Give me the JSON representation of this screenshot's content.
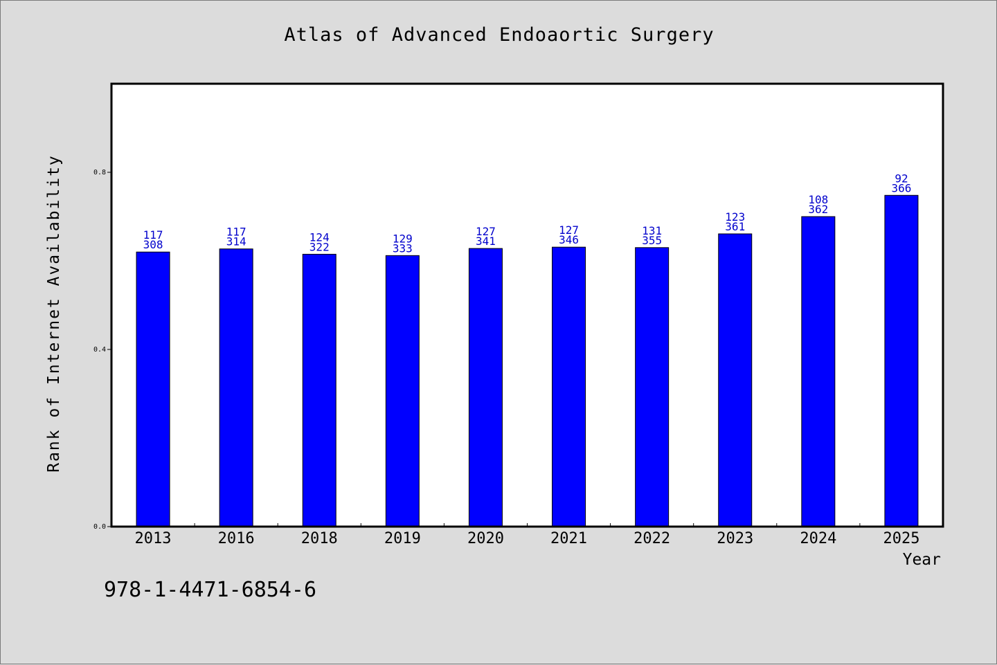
{
  "chart_data": {
    "type": "bar",
    "title": "Atlas of Advanced Endoaortic Surgery",
    "xlabel": "Year",
    "ylabel": "Rank of Internet Availability",
    "categories": [
      "2013",
      "2016",
      "2018",
      "2019",
      "2020",
      "2021",
      "2022",
      "2023",
      "2024",
      "2025"
    ],
    "values": [
      0.62,
      0.627,
      0.615,
      0.612,
      0.628,
      0.631,
      0.63,
      0.661,
      0.7,
      0.748
    ],
    "annotations": [
      {
        "top": "117",
        "bottom": "308"
      },
      {
        "top": "117",
        "bottom": "314"
      },
      {
        "top": "124",
        "bottom": "322"
      },
      {
        "top": "129",
        "bottom": "333"
      },
      {
        "top": "127",
        "bottom": "341"
      },
      {
        "top": "127",
        "bottom": "346"
      },
      {
        "top": "131",
        "bottom": "355"
      },
      {
        "top": "123",
        "bottom": "361"
      },
      {
        "top": "108",
        "bottom": "362"
      },
      {
        "top": "92",
        "bottom": "366"
      }
    ],
    "ylim": [
      0,
      1.0
    ],
    "yticks": [
      0.0,
      0.4,
      0.8
    ],
    "ytick_labels": [
      "0.0",
      "0.4",
      "0.8"
    ],
    "grid": false,
    "bar_color": "#0000ff",
    "label_color": "#0000cc"
  },
  "footer": {
    "isbn": "978-1-4471-6854-6"
  }
}
